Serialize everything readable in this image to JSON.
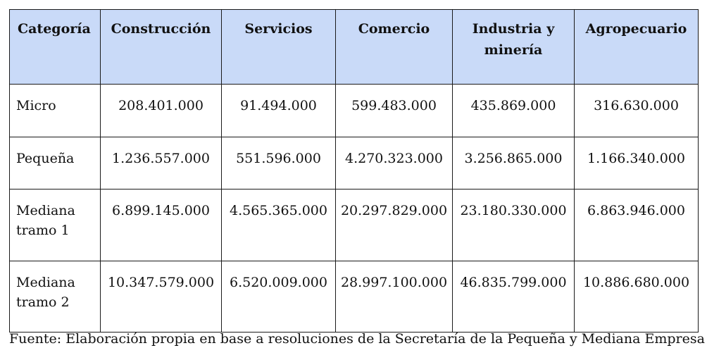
{
  "table": {
    "headers": [
      "Categoría",
      "Construcción",
      "Servicios",
      "Comercio",
      "Industria y minería",
      "Agropecuario"
    ],
    "rows": [
      {
        "label": "Micro",
        "values": [
          "208.401.000",
          "91.494.000",
          "599.483.000",
          "435.869.000",
          "316.630.000"
        ]
      },
      {
        "label": "Pequeña",
        "values": [
          "1.236.557.000",
          "551.596.000",
          "4.270.323.000",
          "3.256.865.000",
          "1.166.340.000"
        ]
      },
      {
        "label": "Mediana tramo 1",
        "values": [
          "6.899.145.000",
          "4.565.365.000",
          "20.297.829.000",
          "23.180.330.000",
          "6.863.946.000"
        ]
      },
      {
        "label": "Mediana tramo 2",
        "values": [
          "10.347.579.000",
          "6.520.009.000",
          "28.997.100.000",
          "46.835.799.000",
          "10.886.680.000"
        ]
      }
    ]
  },
  "caption": "Fuente: Elaboración propia en base a resoluciones de la Secretaría de la Pequeña y Mediana Empresa"
}
